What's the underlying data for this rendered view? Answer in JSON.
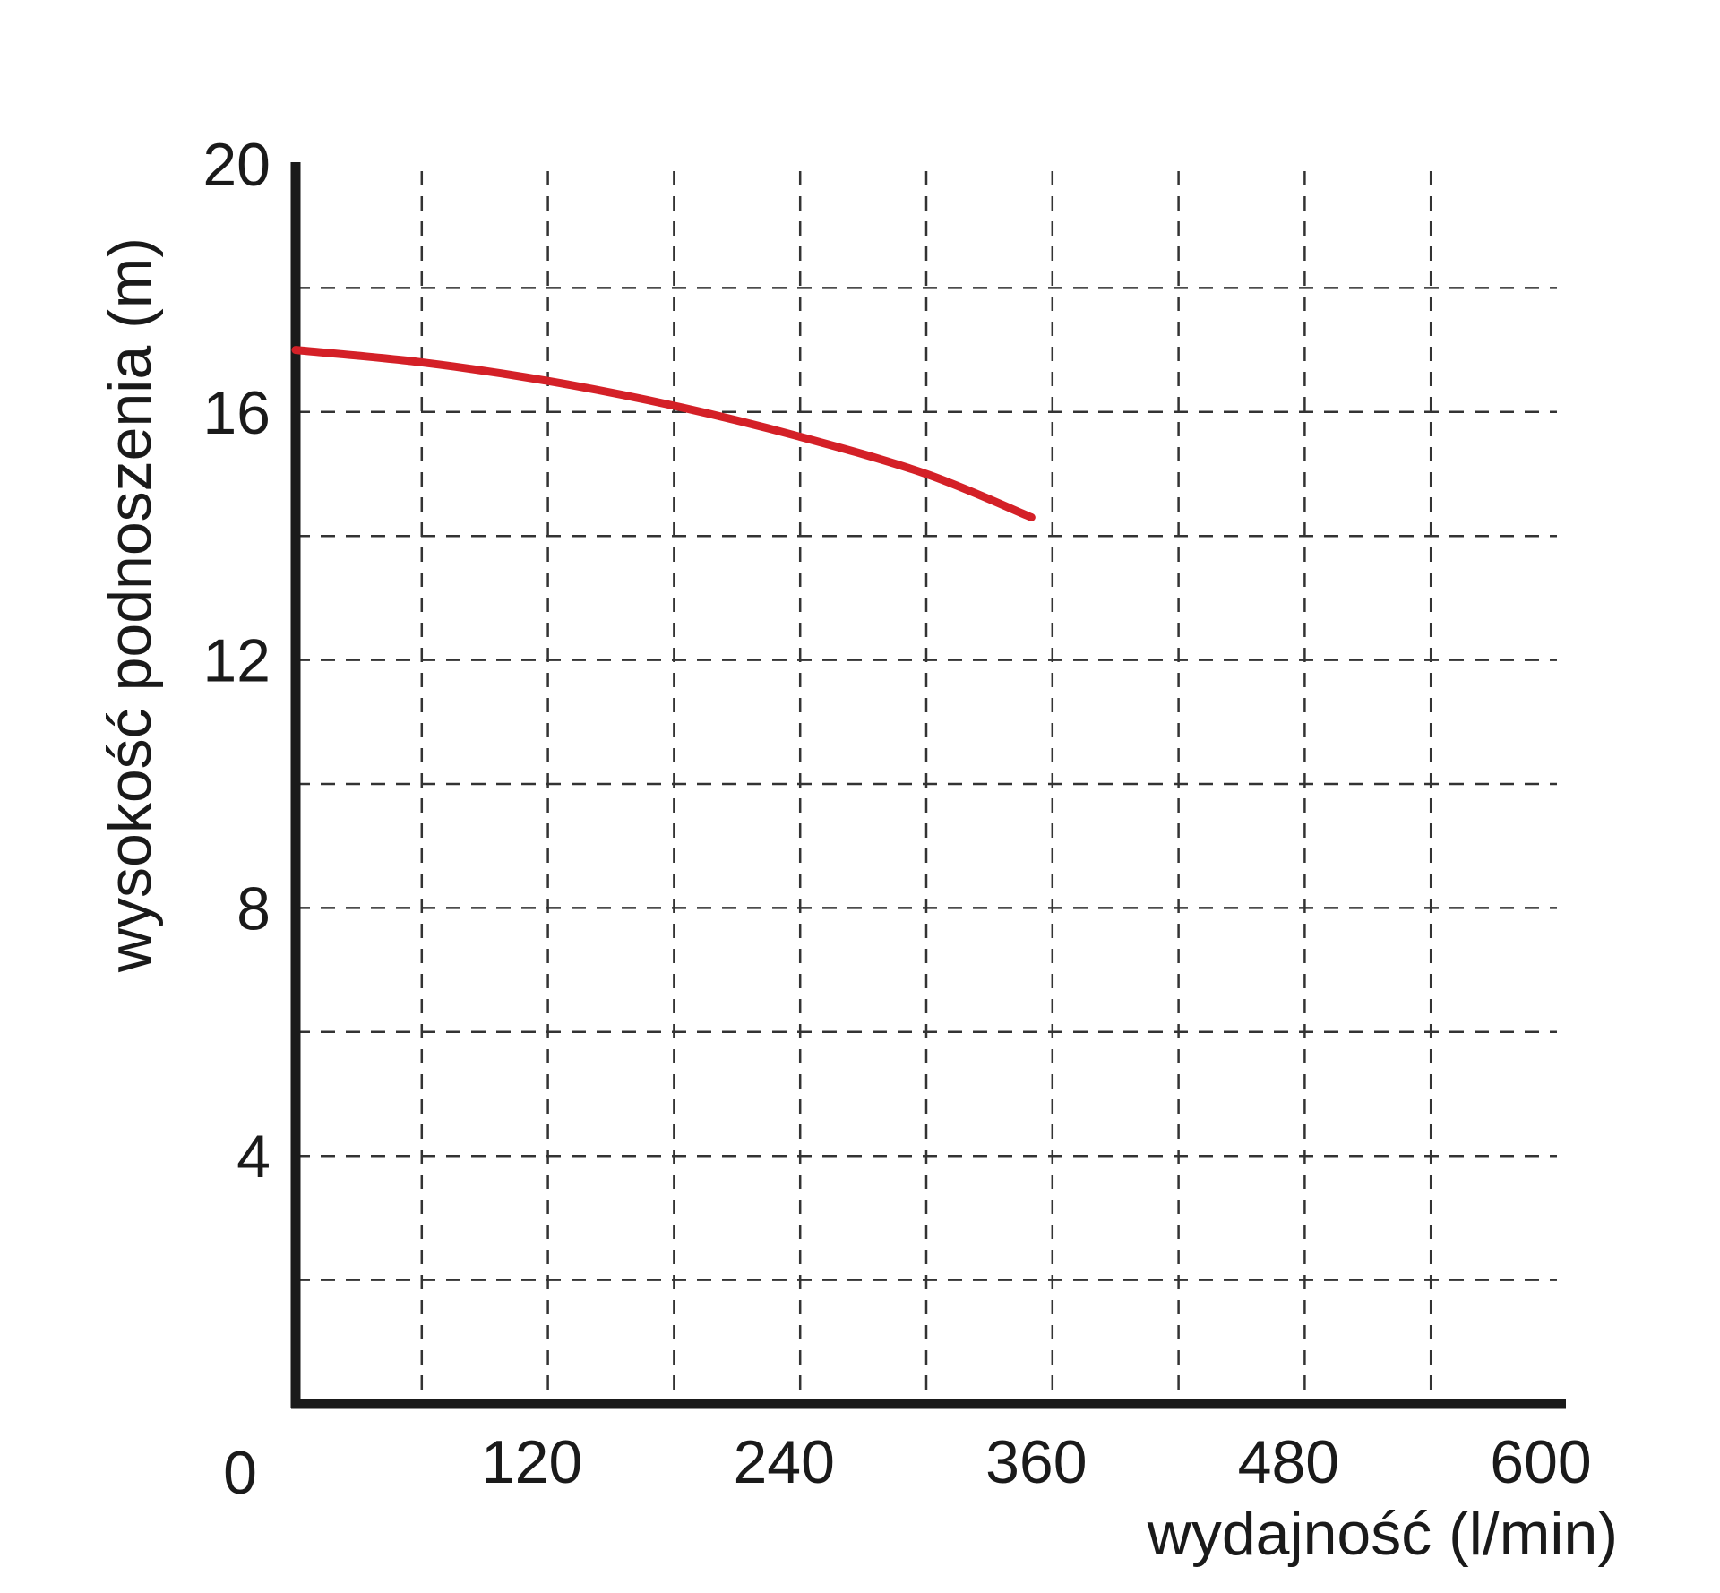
{
  "chart_data": {
    "type": "line",
    "title": "",
    "xlabel": "wydajność (l/min)",
    "ylabel": "wysokość podnoszenia (m)",
    "xlim": [
      0,
      600
    ],
    "ylim": [
      0,
      20
    ],
    "xticks": [
      0,
      120,
      240,
      360,
      480,
      600
    ],
    "xtick_labels": [
      "0",
      "120",
      "240",
      "360",
      "480",
      "600"
    ],
    "yticks": [
      4,
      8,
      12,
      16,
      20
    ],
    "ytick_labels": [
      "4",
      "8",
      "12",
      "16",
      "20"
    ],
    "x_gridlines": [
      60,
      120,
      180,
      240,
      300,
      360,
      420,
      480,
      540
    ],
    "y_gridlines": [
      2,
      4,
      6,
      8,
      10,
      12,
      14,
      16,
      18
    ],
    "grid": true,
    "grid_style": "dashed",
    "legend": "none",
    "series": [
      {
        "color": "#d42027",
        "x": [
          0,
          60,
          120,
          180,
          240,
          300,
          350
        ],
        "y": [
          17.0,
          16.8,
          16.5,
          16.1,
          15.6,
          15.0,
          14.3
        ]
      }
    ]
  }
}
